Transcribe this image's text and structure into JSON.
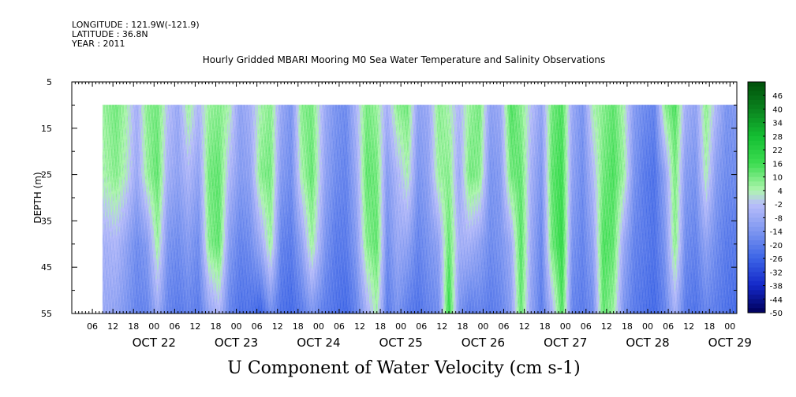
{
  "header": {
    "longitude": "LONGITUDE : 121.9W(-121.9)",
    "latitude": "LATITUDE : 36.8N",
    "year": "YEAR : 2011",
    "title": "Hourly Gridded MBARI Mooring M0 Sea Water Temperature and Salinity Observations"
  },
  "chart_data": {
    "type": "heatmap",
    "title": "Hourly Gridded MBARI Mooring M0 Sea Water Temperature and Salinity Observations",
    "xlabel": "U Component of Water Velocity (cm s-1)",
    "ylabel": "DEPTH (m)",
    "y_reversed": true,
    "ylim": [
      5,
      55
    ],
    "y_ticks": [
      5,
      15,
      25,
      35,
      45,
      55
    ],
    "data_depth_range": [
      10,
      55
    ],
    "x_axis": {
      "start": "2011-10-21 00:00",
      "end": "2011-10-29 02:00",
      "data_start": "2011-10-21 09:00",
      "data_end": "2011-10-29 02:00",
      "hour_labels": [
        "06",
        "12",
        "18",
        "00",
        "06",
        "12",
        "18",
        "00",
        "06",
        "12",
        "18",
        "00",
        "06",
        "12",
        "18",
        "00",
        "06",
        "12",
        "18",
        "00",
        "06",
        "12",
        "18",
        "00",
        "06",
        "12",
        "18",
        "00",
        "06",
        "12",
        "18",
        "00"
      ],
      "day_labels": [
        "OCT 22",
        "OCT 23",
        "OCT 24",
        "OCT 25",
        "OCT 26",
        "OCT 27",
        "OCT 28",
        "OCT 29"
      ]
    },
    "colorbar": {
      "levels": [
        "46",
        "40",
        "34",
        "28",
        "22",
        "16",
        "10",
        "4",
        "-2",
        "-8",
        "-14",
        "-20",
        "-26",
        "-32",
        "-38",
        "-44",
        "-50"
      ],
      "range": [
        -50,
        52
      ],
      "step": 2
    },
    "profile_key_times": [
      "2011-10-21 09:00",
      "2011-10-21 13:00",
      "2011-10-21 16:00",
      "2011-10-21 19:00",
      "2011-10-21 22:00",
      "2011-10-22 01:00",
      "2011-10-22 04:00",
      "2011-10-22 07:00",
      "2011-10-22 10:00",
      "2011-10-22 13:00",
      "2011-10-22 16:00",
      "2011-10-22 19:00",
      "2011-10-22 22:00",
      "2011-10-23 01:00",
      "2011-10-23 04:00",
      "2011-10-23 07:00",
      "2011-10-23 10:00",
      "2011-10-23 13:00",
      "2011-10-23 16:00",
      "2011-10-23 19:00",
      "2011-10-23 22:00",
      "2011-10-24 02:00",
      "2011-10-24 05:00",
      "2011-10-24 08:00",
      "2011-10-24 11:00",
      "2011-10-24 14:00",
      "2011-10-24 17:00",
      "2011-10-24 20:00",
      "2011-10-24 23:00",
      "2011-10-25 02:00",
      "2011-10-25 05:00",
      "2011-10-25 08:00",
      "2011-10-25 11:00",
      "2011-10-25 14:00",
      "2011-10-25 17:00",
      "2011-10-25 20:00",
      "2011-10-25 23:00",
      "2011-10-26 02:00",
      "2011-10-26 05:00",
      "2011-10-26 08:00",
      "2011-10-26 11:00",
      "2011-10-26 14:00",
      "2011-10-26 17:00",
      "2011-10-26 20:00",
      "2011-10-26 23:00",
      "2011-10-27 02:00",
      "2011-10-27 05:00",
      "2011-10-27 08:00",
      "2011-10-27 11:00",
      "2011-10-27 14:00",
      "2011-10-27 17:00",
      "2011-10-27 20:00",
      "2011-10-27 23:00",
      "2011-10-28 02:00",
      "2011-10-28 05:00",
      "2011-10-28 08:00",
      "2011-10-28 11:00",
      "2011-10-28 14:00",
      "2011-10-28 17:00",
      "2011-10-28 20:00",
      "2011-10-28 23:00",
      "2011-10-29 02:00"
    ],
    "profile_depths": [
      10,
      25,
      40,
      55
    ],
    "profiles": [
      [
        6,
        4,
        -6,
        -8
      ],
      [
        10,
        8,
        -4,
        -10
      ],
      [
        4,
        2,
        -10,
        -14
      ],
      [
        -6,
        -8,
        -16,
        -18
      ],
      [
        8,
        6,
        -12,
        -18
      ],
      [
        10,
        12,
        6,
        -8
      ],
      [
        -2,
        -6,
        -14,
        -18
      ],
      [
        -8,
        -10,
        -16,
        -20
      ],
      [
        6,
        -4,
        -12,
        -18
      ],
      [
        -4,
        -10,
        -16,
        -20
      ],
      [
        6,
        10,
        8,
        -10
      ],
      [
        8,
        12,
        12,
        -4
      ],
      [
        4,
        -4,
        -12,
        -18
      ],
      [
        -10,
        -12,
        -18,
        -22
      ],
      [
        -6,
        -10,
        -16,
        -22
      ],
      [
        4,
        8,
        -8,
        -26
      ],
      [
        8,
        10,
        6,
        -16
      ],
      [
        -8,
        -12,
        -18,
        -22
      ],
      [
        -14,
        -16,
        -20,
        -24
      ],
      [
        8,
        4,
        -10,
        -20
      ],
      [
        10,
        12,
        6,
        -14
      ],
      [
        -8,
        -10,
        -14,
        -20
      ],
      [
        -14,
        -16,
        -20,
        -22
      ],
      [
        -16,
        -18,
        -20,
        -24
      ],
      [
        -4,
        -8,
        -12,
        -18
      ],
      [
        10,
        12,
        8,
        -6
      ],
      [
        6,
        10,
        12,
        4
      ],
      [
        -6,
        -12,
        -16,
        -20
      ],
      [
        8,
        -4,
        -8,
        -14
      ],
      [
        10,
        4,
        -10,
        -20
      ],
      [
        -10,
        -14,
        -18,
        -22
      ],
      [
        -8,
        -10,
        -14,
        -18
      ],
      [
        8,
        6,
        -10,
        -16
      ],
      [
        4,
        8,
        12,
        18
      ],
      [
        -4,
        -8,
        -6,
        -14
      ],
      [
        6,
        10,
        -6,
        -20
      ],
      [
        10,
        8,
        -10,
        -18
      ],
      [
        -10,
        -14,
        -16,
        -20
      ],
      [
        -8,
        -12,
        -14,
        -18
      ],
      [
        14,
        10,
        -8,
        -12
      ],
      [
        8,
        12,
        14,
        12
      ],
      [
        -2,
        -6,
        -8,
        -10
      ],
      [
        -10,
        -14,
        -18,
        -20
      ],
      [
        10,
        12,
        10,
        -6
      ],
      [
        14,
        16,
        18,
        14
      ],
      [
        -8,
        -10,
        -14,
        -18
      ],
      [
        -14,
        -16,
        -18,
        -20
      ],
      [
        4,
        -4,
        -10,
        -16
      ],
      [
        8,
        10,
        14,
        12
      ],
      [
        12,
        14,
        12,
        6
      ],
      [
        4,
        6,
        -8,
        -14
      ],
      [
        -12,
        -14,
        -18,
        -20
      ],
      [
        -16,
        -20,
        -20,
        -22
      ],
      [
        -18,
        -22,
        -22,
        -24
      ],
      [
        8,
        -10,
        -14,
        -18
      ],
      [
        14,
        10,
        8,
        -6
      ],
      [
        -6,
        -12,
        -16,
        -20
      ],
      [
        -10,
        -14,
        -18,
        -22
      ],
      [
        8,
        4,
        -10,
        -18
      ],
      [
        -4,
        -12,
        -16,
        -20
      ],
      [
        -14,
        -16,
        -20,
        -22
      ],
      [
        -12,
        -16,
        -20,
        -24
      ]
    ]
  },
  "colors": {
    "background": "#ffffff",
    "axis": "#000000"
  }
}
